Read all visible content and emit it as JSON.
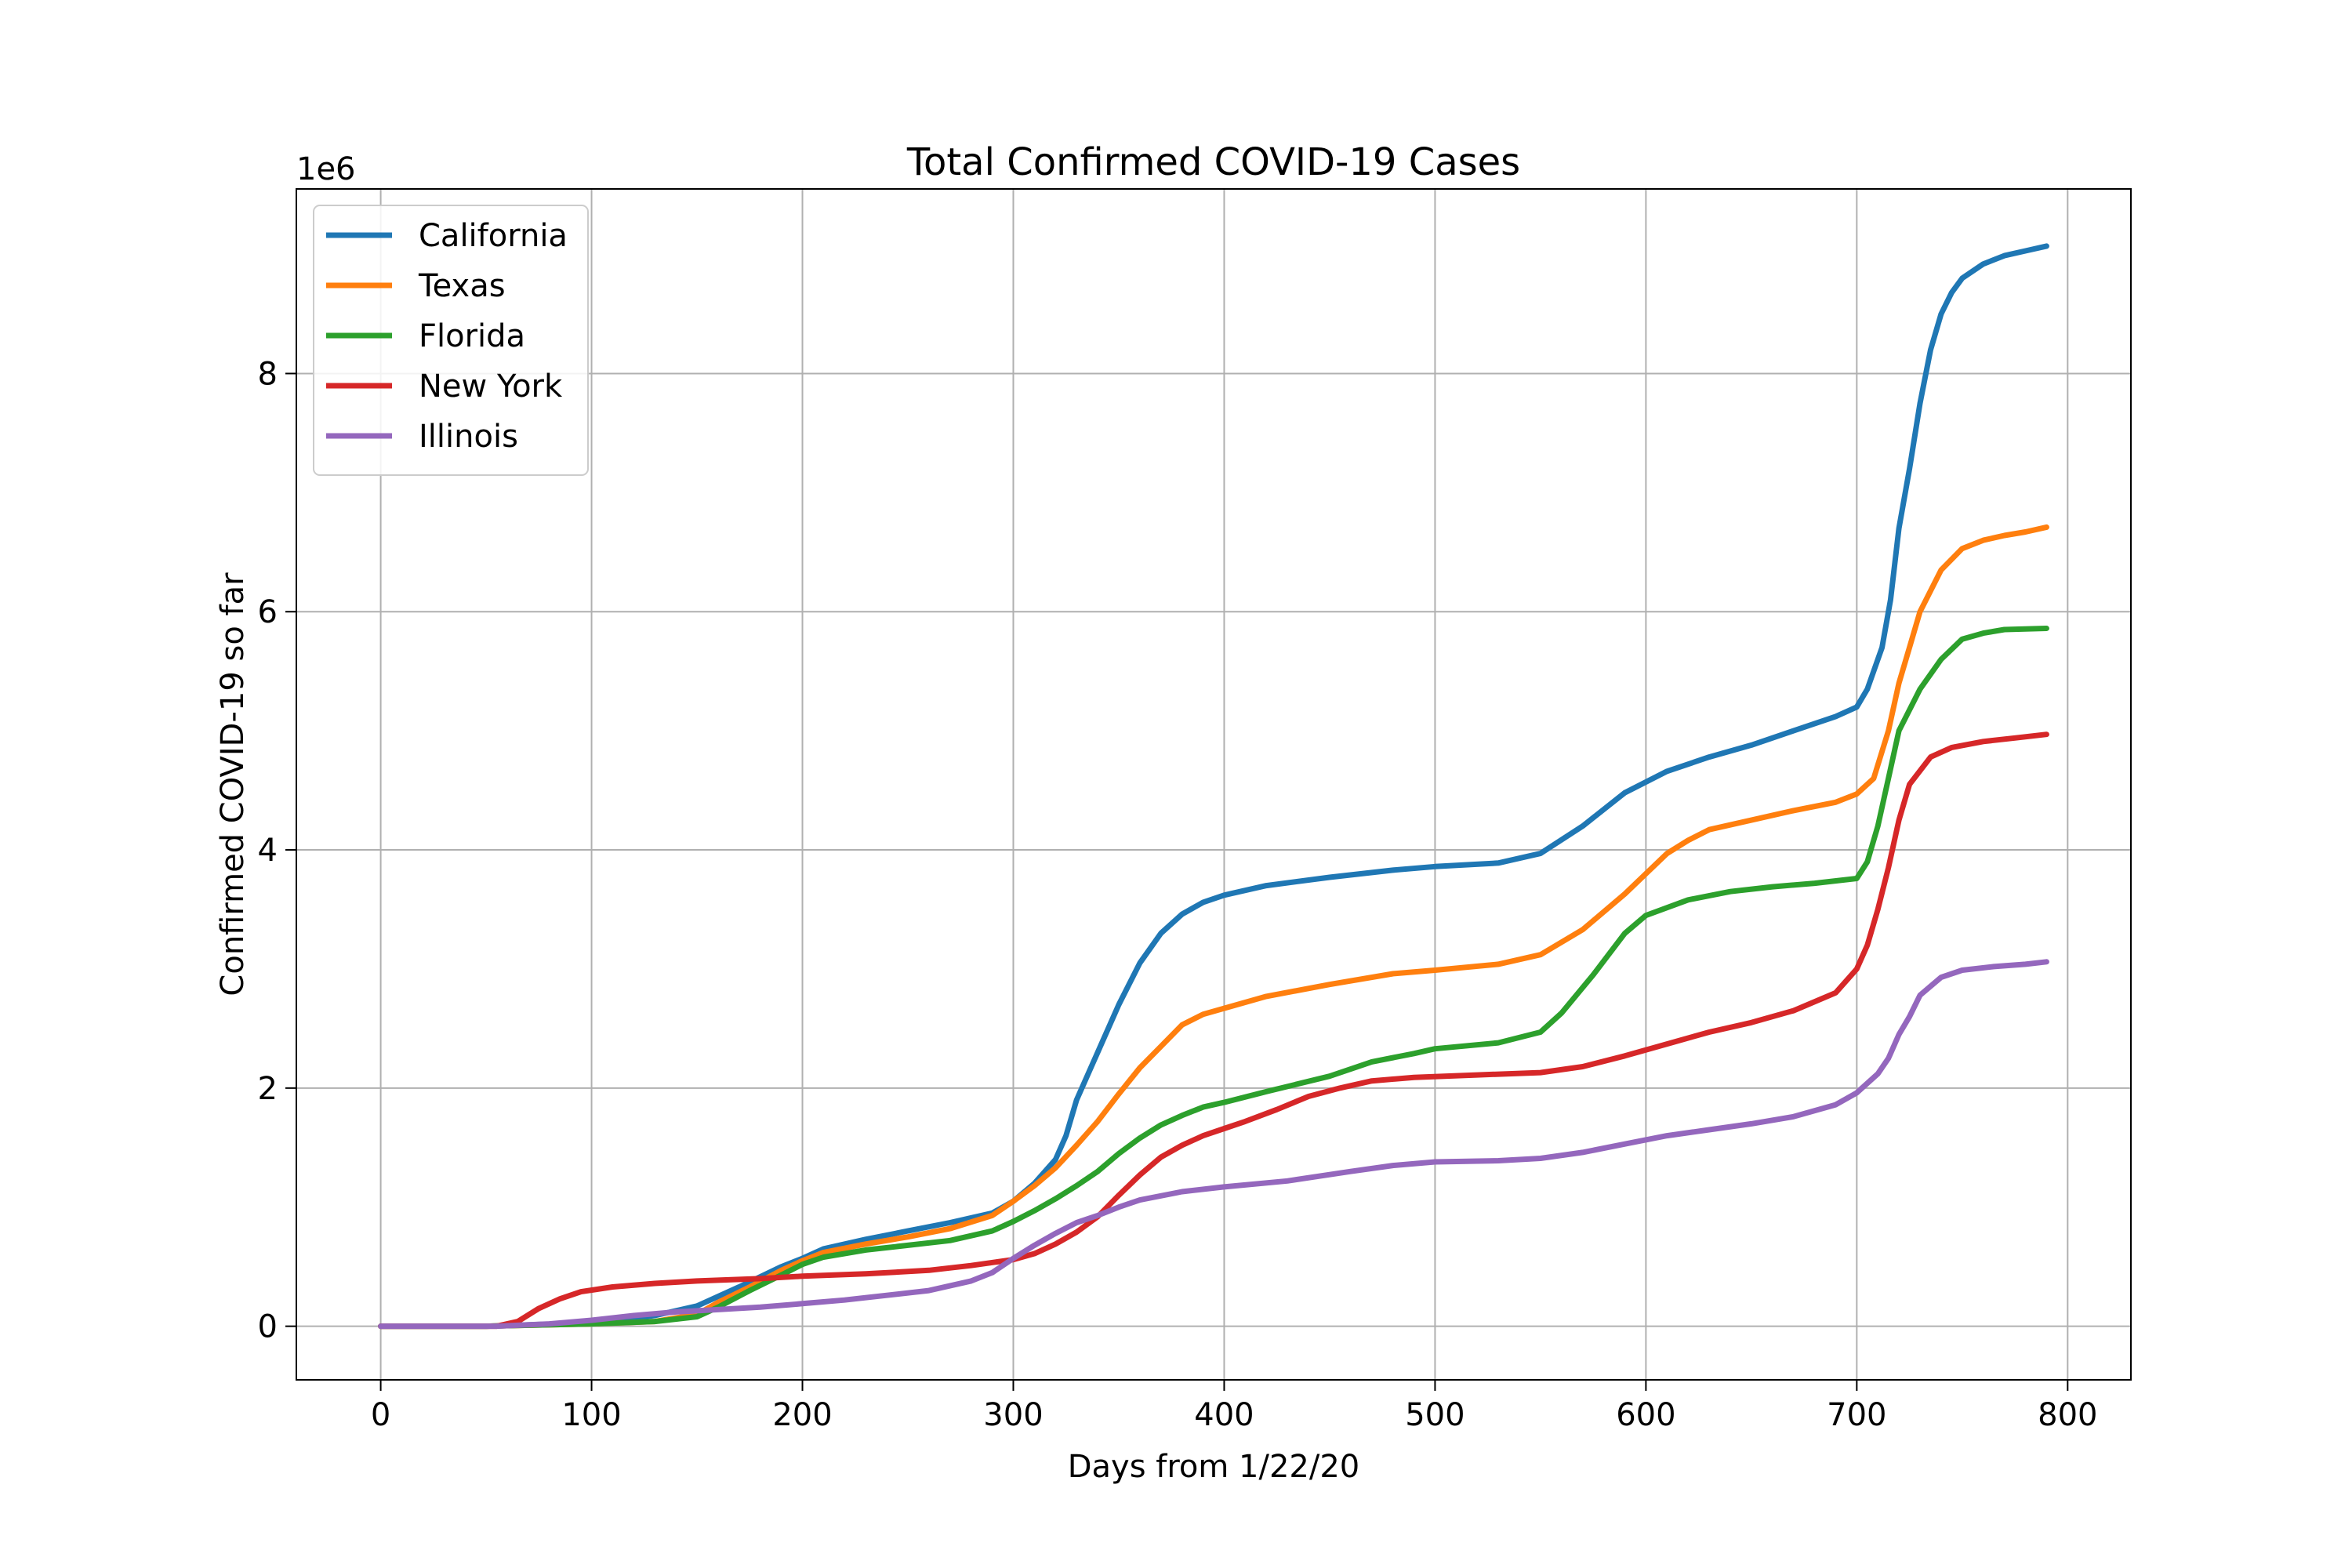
{
  "chart_data": {
    "type": "line",
    "title": "Total Confirmed COVID-19 Cases",
    "xlabel": "Days from 1/22/20",
    "ylabel": "Confirmed COVID-19 so far",
    "y_offset_label": "1e6",
    "xlim": [
      -40,
      830
    ],
    "ylim": [
      -0.45,
      9.55
    ],
    "xticks": [
      0,
      100,
      200,
      300,
      400,
      500,
      600,
      700,
      800
    ],
    "yticks": [
      0,
      2,
      4,
      6,
      8
    ],
    "grid": true,
    "legend_position": "top-left",
    "series": [
      {
        "name": "California",
        "color": "#1f77b4",
        "points": [
          [
            0,
            0
          ],
          [
            50,
            0
          ],
          [
            100,
            0.03
          ],
          [
            130,
            0.09
          ],
          [
            150,
            0.17
          ],
          [
            170,
            0.33
          ],
          [
            190,
            0.5
          ],
          [
            200,
            0.57
          ],
          [
            210,
            0.65
          ],
          [
            230,
            0.73
          ],
          [
            250,
            0.8
          ],
          [
            270,
            0.87
          ],
          [
            290,
            0.95
          ],
          [
            300,
            1.05
          ],
          [
            310,
            1.2
          ],
          [
            320,
            1.4
          ],
          [
            325,
            1.6
          ],
          [
            330,
            1.9
          ],
          [
            340,
            2.3
          ],
          [
            350,
            2.7
          ],
          [
            360,
            3.05
          ],
          [
            370,
            3.3
          ],
          [
            380,
            3.46
          ],
          [
            390,
            3.56
          ],
          [
            400,
            3.62
          ],
          [
            420,
            3.7
          ],
          [
            450,
            3.77
          ],
          [
            480,
            3.83
          ],
          [
            500,
            3.86
          ],
          [
            530,
            3.89
          ],
          [
            550,
            3.97
          ],
          [
            570,
            4.2
          ],
          [
            590,
            4.48
          ],
          [
            610,
            4.66
          ],
          [
            630,
            4.78
          ],
          [
            650,
            4.88
          ],
          [
            670,
            5.0
          ],
          [
            690,
            5.12
          ],
          [
            700,
            5.2
          ],
          [
            705,
            5.35
          ],
          [
            712,
            5.7
          ],
          [
            716,
            6.1
          ],
          [
            720,
            6.7
          ],
          [
            725,
            7.2
          ],
          [
            730,
            7.75
          ],
          [
            735,
            8.2
          ],
          [
            740,
            8.5
          ],
          [
            745,
            8.68
          ],
          [
            750,
            8.8
          ],
          [
            760,
            8.92
          ],
          [
            770,
            8.99
          ],
          [
            780,
            9.03
          ],
          [
            790,
            9.07
          ]
        ]
      },
      {
        "name": "Texas",
        "color": "#ff7f0e",
        "points": [
          [
            0,
            0
          ],
          [
            50,
            0
          ],
          [
            100,
            0.02
          ],
          [
            130,
            0.04
          ],
          [
            150,
            0.1
          ],
          [
            160,
            0.2
          ],
          [
            175,
            0.33
          ],
          [
            190,
            0.47
          ],
          [
            200,
            0.55
          ],
          [
            210,
            0.62
          ],
          [
            230,
            0.69
          ],
          [
            250,
            0.75
          ],
          [
            270,
            0.82
          ],
          [
            290,
            0.93
          ],
          [
            300,
            1.05
          ],
          [
            310,
            1.18
          ],
          [
            320,
            1.33
          ],
          [
            330,
            1.52
          ],
          [
            340,
            1.72
          ],
          [
            350,
            1.95
          ],
          [
            360,
            2.17
          ],
          [
            370,
            2.35
          ],
          [
            380,
            2.53
          ],
          [
            390,
            2.62
          ],
          [
            400,
            2.67
          ],
          [
            420,
            2.77
          ],
          [
            450,
            2.87
          ],
          [
            480,
            2.96
          ],
          [
            500,
            2.99
          ],
          [
            530,
            3.04
          ],
          [
            550,
            3.12
          ],
          [
            570,
            3.33
          ],
          [
            590,
            3.63
          ],
          [
            600,
            3.8
          ],
          [
            610,
            3.97
          ],
          [
            620,
            4.08
          ],
          [
            630,
            4.17
          ],
          [
            650,
            4.25
          ],
          [
            670,
            4.33
          ],
          [
            690,
            4.4
          ],
          [
            700,
            4.47
          ],
          [
            708,
            4.6
          ],
          [
            715,
            5.0
          ],
          [
            720,
            5.4
          ],
          [
            725,
            5.7
          ],
          [
            730,
            6.0
          ],
          [
            740,
            6.35
          ],
          [
            750,
            6.53
          ],
          [
            760,
            6.6
          ],
          [
            770,
            6.64
          ],
          [
            780,
            6.67
          ],
          [
            790,
            6.71
          ]
        ]
      },
      {
        "name": "Florida",
        "color": "#2ca02c",
        "points": [
          [
            0,
            0
          ],
          [
            50,
            0
          ],
          [
            100,
            0.02
          ],
          [
            130,
            0.04
          ],
          [
            150,
            0.08
          ],
          [
            160,
            0.16
          ],
          [
            175,
            0.3
          ],
          [
            190,
            0.43
          ],
          [
            200,
            0.52
          ],
          [
            210,
            0.58
          ],
          [
            230,
            0.64
          ],
          [
            250,
            0.68
          ],
          [
            270,
            0.72
          ],
          [
            290,
            0.8
          ],
          [
            300,
            0.88
          ],
          [
            310,
            0.97
          ],
          [
            320,
            1.07
          ],
          [
            330,
            1.18
          ],
          [
            340,
            1.3
          ],
          [
            350,
            1.45
          ],
          [
            360,
            1.58
          ],
          [
            370,
            1.69
          ],
          [
            380,
            1.77
          ],
          [
            390,
            1.84
          ],
          [
            400,
            1.88
          ],
          [
            420,
            1.97
          ],
          [
            450,
            2.1
          ],
          [
            470,
            2.22
          ],
          [
            490,
            2.29
          ],
          [
            500,
            2.33
          ],
          [
            530,
            2.38
          ],
          [
            550,
            2.47
          ],
          [
            560,
            2.63
          ],
          [
            575,
            2.95
          ],
          [
            590,
            3.3
          ],
          [
            600,
            3.45
          ],
          [
            620,
            3.58
          ],
          [
            640,
            3.65
          ],
          [
            660,
            3.69
          ],
          [
            680,
            3.72
          ],
          [
            700,
            3.76
          ],
          [
            705,
            3.9
          ],
          [
            710,
            4.2
          ],
          [
            715,
            4.6
          ],
          [
            720,
            5.0
          ],
          [
            730,
            5.35
          ],
          [
            740,
            5.6
          ],
          [
            750,
            5.77
          ],
          [
            760,
            5.82
          ],
          [
            770,
            5.85
          ],
          [
            790,
            5.86
          ]
        ]
      },
      {
        "name": "New York",
        "color": "#d62728",
        "points": [
          [
            0,
            0
          ],
          [
            55,
            0
          ],
          [
            65,
            0.04
          ],
          [
            75,
            0.15
          ],
          [
            85,
            0.23
          ],
          [
            95,
            0.29
          ],
          [
            110,
            0.33
          ],
          [
            130,
            0.36
          ],
          [
            150,
            0.38
          ],
          [
            180,
            0.4
          ],
          [
            200,
            0.42
          ],
          [
            230,
            0.44
          ],
          [
            260,
            0.47
          ],
          [
            280,
            0.51
          ],
          [
            300,
            0.56
          ],
          [
            310,
            0.61
          ],
          [
            320,
            0.69
          ],
          [
            330,
            0.79
          ],
          [
            340,
            0.92
          ],
          [
            350,
            1.1
          ],
          [
            360,
            1.27
          ],
          [
            370,
            1.42
          ],
          [
            380,
            1.52
          ],
          [
            390,
            1.6
          ],
          [
            400,
            1.66
          ],
          [
            410,
            1.72
          ],
          [
            425,
            1.82
          ],
          [
            440,
            1.93
          ],
          [
            455,
            2.0
          ],
          [
            470,
            2.06
          ],
          [
            490,
            2.09
          ],
          [
            520,
            2.11
          ],
          [
            550,
            2.13
          ],
          [
            570,
            2.18
          ],
          [
            590,
            2.27
          ],
          [
            610,
            2.37
          ],
          [
            630,
            2.47
          ],
          [
            650,
            2.55
          ],
          [
            670,
            2.65
          ],
          [
            690,
            2.8
          ],
          [
            700,
            3.0
          ],
          [
            705,
            3.2
          ],
          [
            710,
            3.5
          ],
          [
            715,
            3.85
          ],
          [
            720,
            4.25
          ],
          [
            725,
            4.55
          ],
          [
            735,
            4.78
          ],
          [
            745,
            4.86
          ],
          [
            760,
            4.91
          ],
          [
            775,
            4.94
          ],
          [
            790,
            4.97
          ]
        ]
      },
      {
        "name": "Illinois",
        "color": "#9467bd",
        "points": [
          [
            0,
            0
          ],
          [
            55,
            0
          ],
          [
            80,
            0.02
          ],
          [
            100,
            0.05
          ],
          [
            120,
            0.09
          ],
          [
            140,
            0.12
          ],
          [
            160,
            0.14
          ],
          [
            180,
            0.16
          ],
          [
            200,
            0.19
          ],
          [
            220,
            0.22
          ],
          [
            240,
            0.26
          ],
          [
            260,
            0.3
          ],
          [
            280,
            0.38
          ],
          [
            290,
            0.45
          ],
          [
            300,
            0.57
          ],
          [
            310,
            0.68
          ],
          [
            320,
            0.78
          ],
          [
            330,
            0.87
          ],
          [
            340,
            0.93
          ],
          [
            350,
            1.0
          ],
          [
            360,
            1.06
          ],
          [
            380,
            1.13
          ],
          [
            400,
            1.17
          ],
          [
            430,
            1.22
          ],
          [
            460,
            1.3
          ],
          [
            480,
            1.35
          ],
          [
            500,
            1.38
          ],
          [
            530,
            1.39
          ],
          [
            550,
            1.41
          ],
          [
            570,
            1.46
          ],
          [
            590,
            1.53
          ],
          [
            610,
            1.6
          ],
          [
            630,
            1.65
          ],
          [
            650,
            1.7
          ],
          [
            670,
            1.76
          ],
          [
            690,
            1.86
          ],
          [
            700,
            1.96
          ],
          [
            710,
            2.12
          ],
          [
            715,
            2.25
          ],
          [
            720,
            2.45
          ],
          [
            725,
            2.6
          ],
          [
            730,
            2.78
          ],
          [
            740,
            2.93
          ],
          [
            750,
            2.99
          ],
          [
            765,
            3.02
          ],
          [
            780,
            3.04
          ],
          [
            790,
            3.06
          ]
        ]
      }
    ]
  }
}
